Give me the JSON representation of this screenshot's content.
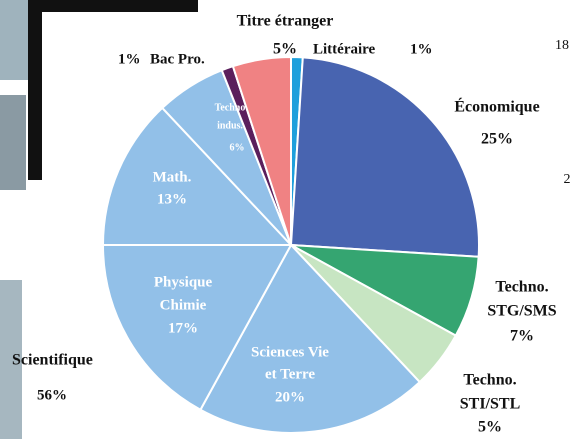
{
  "chart_data": {
    "type": "pie",
    "categories": [
      [
        "Littéraire"
      ],
      [
        "Économique"
      ],
      [
        "Techno.",
        "STG/SMS"
      ],
      [
        "Techno.",
        "STI/STL"
      ],
      [
        "Sciences Vie",
        "et Terre"
      ],
      [
        "Physique",
        "Chimie"
      ],
      [
        "Math."
      ],
      [
        "Techno",
        "indus."
      ],
      [
        "Bac Pro."
      ],
      [
        "Titre étranger"
      ]
    ],
    "values": [
      1,
      25,
      7,
      5,
      20,
      17,
      13,
      6,
      1,
      5
    ],
    "value_labels": [
      "1%",
      "25%",
      "7%",
      "5%",
      "20%",
      "17%",
      "13%",
      "6%",
      "1%",
      "5%"
    ],
    "colors": [
      "#1ea0dc",
      "#4864b0",
      "#35a571",
      "#c7e5c2",
      "#92c0e8",
      "#92c0e8",
      "#92c0e8",
      "#92c0e8",
      "#5b1f5c",
      "#f08283"
    ],
    "annotations": [
      "Scientifique",
      "56%",
      "18",
      "2"
    ]
  }
}
